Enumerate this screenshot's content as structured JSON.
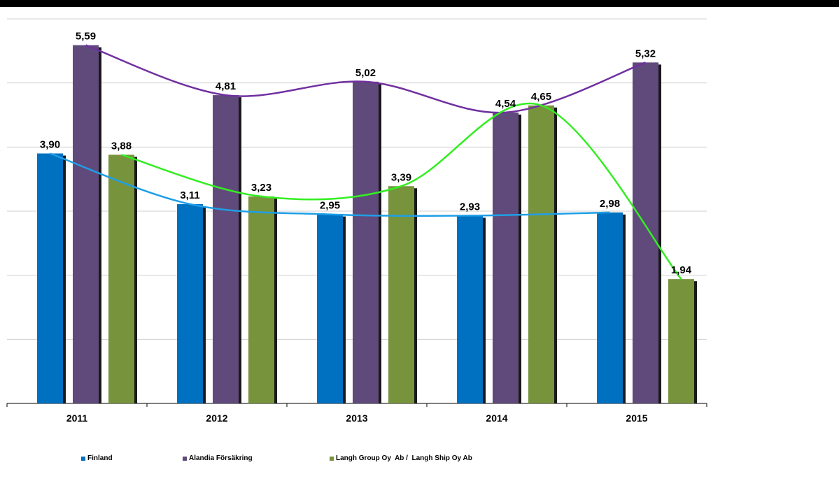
{
  "chart_data": {
    "type": "bar",
    "categories": [
      "2011",
      "2012",
      "2013",
      "2014",
      "2015"
    ],
    "series": [
      {
        "name": "Finland",
        "values": [
          3.9,
          3.11,
          2.95,
          2.93,
          2.98
        ],
        "labels": [
          "3,90",
          "3,11",
          "2,95",
          "2,93",
          "2,98"
        ],
        "color": "#0070C0",
        "trend_color": "#1E9FE6"
      },
      {
        "name": "Alandia Försäkring",
        "values": [
          5.59,
          4.81,
          5.02,
          4.54,
          5.32
        ],
        "labels": [
          "5,59",
          "4,81",
          "5,02",
          "4,54",
          "5,32"
        ],
        "color": "#604A7B",
        "trend_color": "#7030A0"
      },
      {
        "name": "Langh Group Oy  Ab /  Langh Ship Oy Ab",
        "values": [
          3.88,
          3.23,
          3.39,
          4.65,
          1.94
        ],
        "labels": [
          "3,88",
          "3,23",
          "3,39",
          "4,65",
          "1,94"
        ],
        "color": "#77933C",
        "trend_color": "#33EE22"
      }
    ],
    "ylim": [
      0,
      6
    ],
    "grid": true,
    "legend": "bottom",
    "trendlines": "smoothed line per series"
  }
}
